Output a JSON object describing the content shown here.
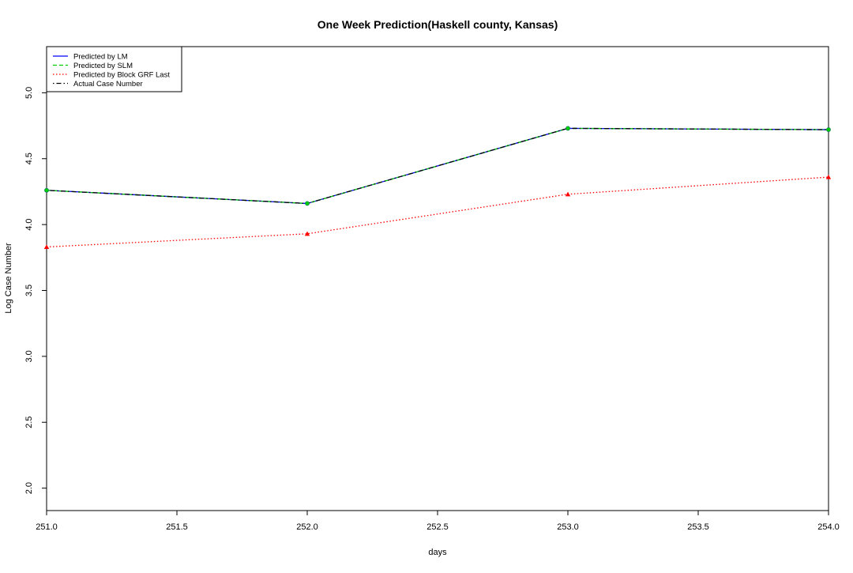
{
  "chart_data": {
    "type": "line",
    "title": "One Week Prediction(Haskell county, Kansas)",
    "xlabel": "days",
    "ylabel": "Log Case Number",
    "xlim": [
      251.0,
      254.0
    ],
    "ylim": [
      1.83,
      5.35
    ],
    "xticks": [
      "251.0",
      "251.5",
      "252.0",
      "252.5",
      "253.0",
      "253.5",
      "254.0"
    ],
    "yticks": [
      "2.0",
      "2.5",
      "3.0",
      "3.5",
      "4.0",
      "4.5",
      "5.0"
    ],
    "x": [
      251,
      252,
      253,
      254
    ],
    "grid": false,
    "legend_position": "top-left",
    "series": [
      {
        "name": "Predicted by LM",
        "values": [
          4.26,
          4.16,
          4.73,
          4.72
        ],
        "color": "#0000ff",
        "style": "solid",
        "marker": "none"
      },
      {
        "name": "Predicted by SLM",
        "values": [
          4.26,
          4.16,
          4.73,
          4.72
        ],
        "color": "#00cd00",
        "style": "dashed",
        "marker": "circle"
      },
      {
        "name": "Predicted by Block GRF Last",
        "values": [
          3.83,
          3.93,
          4.23,
          4.36
        ],
        "color": "#ff0000",
        "style": "dotted",
        "marker": "triangle"
      },
      {
        "name": "Actual Case Number",
        "values": [
          4.26,
          4.16,
          4.73,
          4.72
        ],
        "color": "#000000",
        "style": "dotdash",
        "marker": "none"
      }
    ]
  }
}
